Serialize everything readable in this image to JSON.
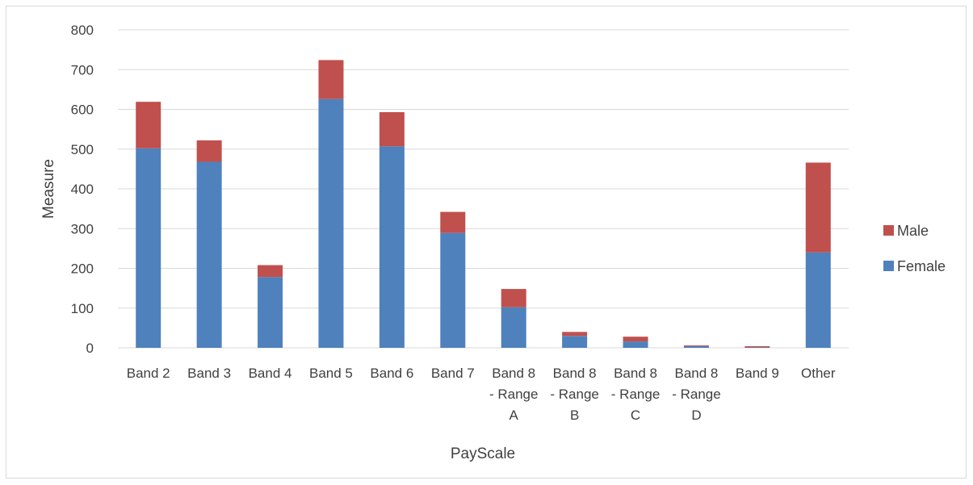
{
  "chart_data": {
    "type": "bar",
    "stacked": true,
    "title": "",
    "xlabel": "PayScale",
    "ylabel": "Measure",
    "ylim": [
      0,
      800
    ],
    "yticks": [
      0,
      100,
      200,
      300,
      400,
      500,
      600,
      700,
      800
    ],
    "grid": true,
    "legend_position": "right",
    "categories": [
      [
        "Band 2"
      ],
      [
        "Band 3"
      ],
      [
        "Band 4"
      ],
      [
        "Band 5"
      ],
      [
        "Band 6"
      ],
      [
        "Band 7"
      ],
      [
        "Band 8",
        "- Range",
        "A"
      ],
      [
        "Band 8",
        "- Range",
        "B"
      ],
      [
        "Band 8",
        "- Range",
        "C"
      ],
      [
        "Band 8",
        "- Range",
        "D"
      ],
      [
        "Band 9"
      ],
      [
        "Other"
      ]
    ],
    "series": [
      {
        "name": "Female",
        "color": "#4f81bd",
        "values": [
          502,
          468,
          178,
          626,
          507,
          289,
          102,
          30,
          16,
          4,
          1,
          240
        ]
      },
      {
        "name": "Male",
        "color": "#c0504d",
        "values": [
          117,
          54,
          30,
          98,
          86,
          53,
          46,
          10,
          12,
          2,
          3,
          226
        ]
      }
    ],
    "legend_order": [
      "Male",
      "Female"
    ]
  }
}
